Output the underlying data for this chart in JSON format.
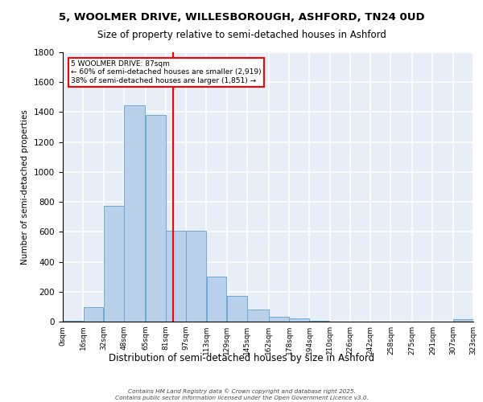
{
  "title_line1": "5, WOOLMER DRIVE, WILLESBOROUGH, ASHFORD, TN24 0UD",
  "title_line2": "Size of property relative to semi-detached houses in Ashford",
  "xlabel": "Distribution of semi-detached houses by size in Ashford",
  "ylabel": "Number of semi-detached properties",
  "annotation_title": "5 WOOLMER DRIVE: 87sqm",
  "annotation_line2": "← 60% of semi-detached houses are smaller (2,919)",
  "annotation_line3": "38% of semi-detached houses are larger (1,851) →",
  "property_size": 87,
  "bin_edges": [
    0,
    16,
    32,
    48,
    65,
    81,
    97,
    113,
    129,
    145,
    162,
    178,
    194,
    210,
    226,
    242,
    258,
    275,
    291,
    307,
    323
  ],
  "bin_labels": [
    "0sqm",
    "16sqm",
    "32sqm",
    "48sqm",
    "65sqm",
    "81sqm",
    "97sqm",
    "113sqm",
    "129sqm",
    "145sqm",
    "162sqm",
    "178sqm",
    "194sqm",
    "210sqm",
    "226sqm",
    "242sqm",
    "258sqm",
    "275sqm",
    "291sqm",
    "307sqm",
    "323sqm"
  ],
  "counts": [
    5,
    95,
    775,
    1445,
    1380,
    605,
    605,
    300,
    170,
    80,
    30,
    20,
    5,
    0,
    0,
    0,
    0,
    0,
    0,
    15
  ],
  "bar_color": "#b8d0ea",
  "bar_edge_color": "#6aaad4",
  "vline_color": "red",
  "vline_x": 87,
  "background_color": "#e8eef8",
  "grid_color": "white",
  "annotation_box_color": "white",
  "annotation_box_edge": "red",
  "ylim": [
    0,
    1800
  ],
  "yticks": [
    0,
    200,
    400,
    600,
    800,
    1000,
    1200,
    1400,
    1600,
    1800
  ],
  "footer": "Contains HM Land Registry data © Crown copyright and database right 2025.\nContains public sector information licensed under the Open Government Licence v3.0."
}
